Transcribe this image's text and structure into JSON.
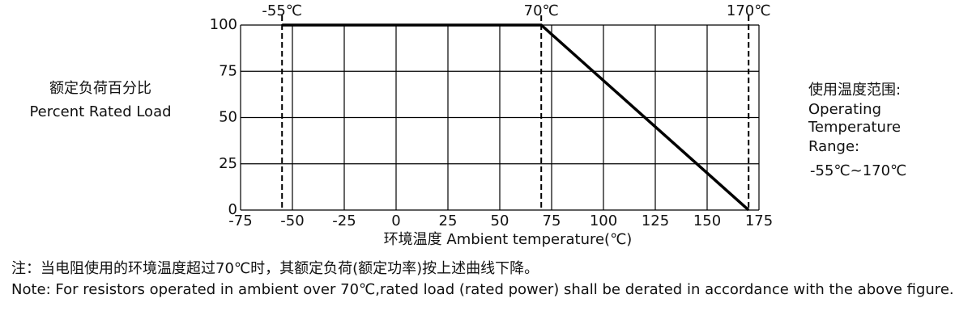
{
  "chart_data": {
    "type": "line",
    "y_label": [
      "额定负荷百分比",
      "Percent Rated Load"
    ],
    "x_label": "环境温度 Ambient temperature(℃)",
    "xlim": [
      -75,
      175
    ],
    "xticks": [
      -75,
      -50,
      -25,
      0,
      25,
      50,
      75,
      100,
      125,
      150,
      175
    ],
    "ylim": [
      0,
      100
    ],
    "yticks": [
      0,
      25,
      50,
      75,
      100
    ],
    "grid": true,
    "series": [
      {
        "color": "#000000",
        "x": [
          -55,
          70,
          170
        ],
        "values": [
          100,
          100,
          0
        ]
      }
    ],
    "annotations": [
      {
        "x": -55,
        "label": "-55℃"
      },
      {
        "x": 70,
        "label": "70℃"
      },
      {
        "x": 170,
        "label": "170℃"
      }
    ],
    "side_text": [
      "使用温度范围:",
      "Operating",
      "Temperature",
      "Range:",
      "-55℃~170℃"
    ],
    "notes": [
      "注：当电阻使用的环境温度超过70℃时，其额定负荷(额定功率)按上述曲线下降。",
      "Note:  For resistors operated in ambient over 70℃,rated  load (rated power) shall be derated in accordance with the above figure."
    ]
  }
}
